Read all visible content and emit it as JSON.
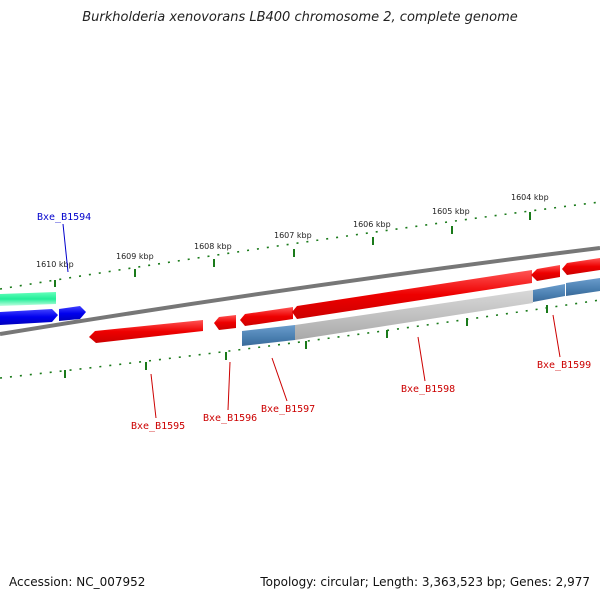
{
  "title": "Burkholderia xenovorans LB400 chromosome 2, complete genome",
  "footer": {
    "accession": "Accession: NC_007952",
    "summary": "Topology: circular; Length: 3,363,523 bp; Genes: 2,977"
  },
  "scale_ticks": [
    {
      "label": "1610 kbp"
    },
    {
      "label": "1609 kbp"
    },
    {
      "label": "1608 kbp"
    },
    {
      "label": "1607 kbp"
    },
    {
      "label": "1606 kbp"
    },
    {
      "label": "1605 kbp"
    },
    {
      "label": "1604 kbp"
    }
  ],
  "gene_labels": [
    {
      "name": "Bxe_B1594",
      "color": "#0000cc"
    },
    {
      "name": "Bxe_B1595",
      "color": "#cc0000"
    },
    {
      "name": "Bxe_B1596",
      "color": "#cc0000"
    },
    {
      "name": "Bxe_B1597",
      "color": "#cc0000"
    },
    {
      "name": "Bxe_B1598",
      "color": "#cc0000"
    },
    {
      "name": "Bxe_B1599",
      "color": "#cc0000"
    }
  ],
  "colors": {
    "forward_gene": "#ee1111",
    "blue_gene": "#1111ee",
    "green_gene": "#22ee99",
    "steel_gene": "#4a7fb0",
    "gray_gene": "#bdbdbd",
    "backbone": "#777777",
    "tick": "#1a7a1a"
  }
}
